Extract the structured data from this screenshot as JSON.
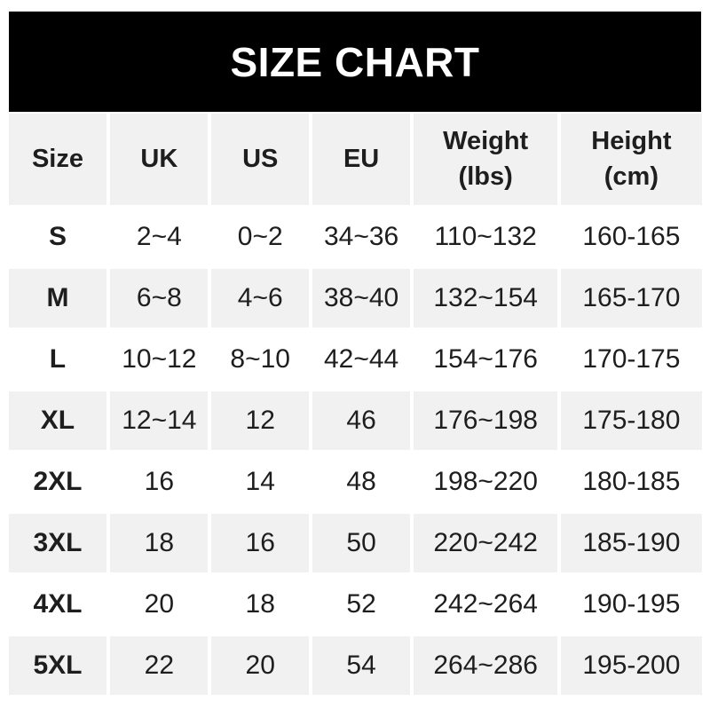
{
  "title": "SIZE CHART",
  "colors": {
    "banner_bg": "#000000",
    "banner_text": "#ffffff",
    "band_gray": "#f1f1f2",
    "band_white": "#ffffff",
    "text": "#1e1e1e"
  },
  "chart_data": {
    "type": "table",
    "title": "SIZE CHART",
    "columns": [
      "Size",
      "UK",
      "US",
      "EU",
      "Weight (lbs)",
      "Height (cm)"
    ],
    "rows": [
      [
        "S",
        "2~4",
        "0~2",
        "34~36",
        "110~132",
        "160-165"
      ],
      [
        "M",
        "6~8",
        "4~6",
        "38~40",
        "132~154",
        "165-170"
      ],
      [
        "L",
        "10~12",
        "8~10",
        "42~44",
        "154~176",
        "170-175"
      ],
      [
        "XL",
        "12~14",
        "12",
        "46",
        "176~198",
        "175-180"
      ],
      [
        "2XL",
        "16",
        "14",
        "48",
        "198~220",
        "180-185"
      ],
      [
        "3XL",
        "18",
        "16",
        "50",
        "220~242",
        "185-190"
      ],
      [
        "4XL",
        "20",
        "18",
        "52",
        "242~264",
        "190-195"
      ],
      [
        "5XL",
        "22",
        "20",
        "54",
        "264~286",
        "195-200"
      ]
    ],
    "layout": {
      "banner_position": "top",
      "row_striping": "alternating white / light gray, starting white after header",
      "header_background": "light gray"
    }
  }
}
